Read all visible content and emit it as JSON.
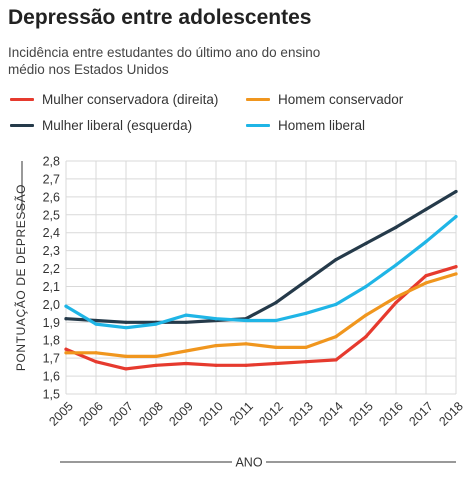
{
  "header": {
    "title": "Depressão entre adolescentes",
    "subtitle": "Incidência entre estudantes do último ano do ensino médio nos Estados Unidos"
  },
  "chart_data": {
    "type": "line",
    "title": "Depressão entre adolescentes",
    "subtitle": "Incidência entre estudantes do último ano do ensino médio nos Estados Unidos",
    "xlabel": "ANO",
    "ylabel": "PONTUAÇÃO DE DEPRESSÃO",
    "x": [
      "2005",
      "2006",
      "2007",
      "2008",
      "2009",
      "2010",
      "2011",
      "2012",
      "2013",
      "2014",
      "2015",
      "2016",
      "2017",
      "2018"
    ],
    "yticks": [
      "1,5",
      "1,6",
      "1,7",
      "1,8",
      "1,9",
      "2,0",
      "2,1",
      "2,2",
      "2,3",
      "2,4",
      "2,5",
      "2,6",
      "2,7",
      "2,8"
    ],
    "ylim": [
      1.5,
      2.8
    ],
    "grid": true,
    "legend_position": "top",
    "series": [
      {
        "name": "Mulher conservadora (direita)",
        "color": "#e63a2e",
        "values": [
          1.75,
          1.68,
          1.64,
          1.66,
          1.67,
          1.66,
          1.66,
          1.67,
          1.68,
          1.69,
          1.82,
          2.01,
          2.16,
          2.21
        ]
      },
      {
        "name": "Homem conservador",
        "color": "#f0961e",
        "values": [
          1.73,
          1.73,
          1.71,
          1.71,
          1.74,
          1.77,
          1.78,
          1.76,
          1.76,
          1.82,
          1.94,
          2.04,
          2.12,
          2.17
        ]
      },
      {
        "name": "Mulher liberal (esquerda)",
        "color": "#253a4a",
        "values": [
          1.92,
          1.91,
          1.9,
          1.9,
          1.9,
          1.91,
          1.92,
          2.01,
          2.13,
          2.25,
          2.34,
          2.43,
          2.53,
          2.63
        ]
      },
      {
        "name": "Homem liberal",
        "color": "#1fb5e6",
        "values": [
          1.99,
          1.89,
          1.87,
          1.89,
          1.94,
          1.92,
          1.91,
          1.91,
          1.95,
          2.0,
          2.1,
          2.22,
          2.35,
          2.49
        ]
      }
    ]
  }
}
